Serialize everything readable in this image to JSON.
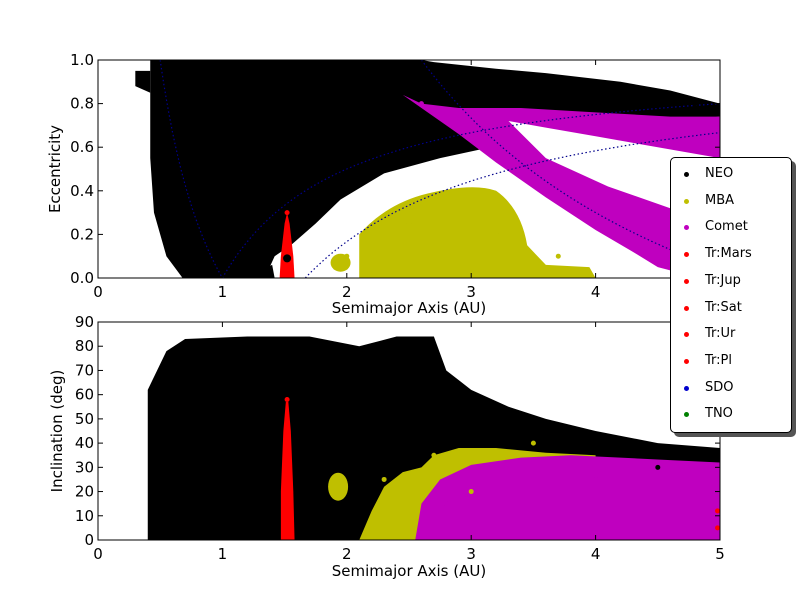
{
  "chart_data": [
    {
      "type": "scatter",
      "panel": "top",
      "xlabel": "Semimajor Axis (AU)",
      "ylabel": "Eccentricity",
      "xlim": [
        0,
        5
      ],
      "ylim": [
        0,
        1
      ],
      "xticks": [
        "0",
        "1",
        "2",
        "3",
        "4"
      ],
      "yticks": [
        "0.0",
        "0.2",
        "0.4",
        "0.6",
        "0.8",
        "1.0"
      ],
      "grid": false,
      "series": [
        {
          "name": "NEO",
          "color": "#000000",
          "region_approx": "a 0.5-1.7 all e; a 1.7-5 above perihelion curve",
          "approx_points": [
            [
              0.6,
              0.5
            ],
            [
              1.0,
              0.3
            ],
            [
              1.3,
              0.2
            ],
            [
              2.5,
              0.85
            ],
            [
              3.5,
              0.85
            ],
            [
              4.8,
              0.8
            ]
          ]
        },
        {
          "name": "MBA",
          "color": "#bfbf00",
          "region_approx": "a 1.8-3.9, e 0-0.45",
          "approx_points": [
            [
              2.0,
              0.1
            ],
            [
              2.5,
              0.25
            ],
            [
              2.8,
              0.35
            ],
            [
              3.2,
              0.2
            ],
            [
              3.7,
              0.1
            ]
          ]
        },
        {
          "name": "Comet",
          "color": "#bf00bf",
          "region_approx": "a 2.5-5, e 0.05-0.85",
          "approx_points": [
            [
              2.6,
              0.8
            ],
            [
              3.2,
              0.6
            ],
            [
              4.0,
              0.4
            ],
            [
              4.6,
              0.15
            ],
            [
              5.0,
              0.7
            ]
          ]
        },
        {
          "name": "Tr:Mars",
          "color": "#ff0000",
          "approx_points": [
            [
              1.52,
              0.05
            ],
            [
              1.52,
              0.2
            ],
            [
              1.52,
              0.3
            ]
          ]
        },
        {
          "name": "Tr:Jup",
          "color": "#ff0000",
          "approx_points": []
        },
        {
          "name": "Tr:Sat",
          "color": "#ff0000",
          "approx_points": []
        },
        {
          "name": "Tr:Ur",
          "color": "#ff0000",
          "approx_points": []
        },
        {
          "name": "Tr:Pl",
          "color": "#ff0000",
          "approx_points": []
        },
        {
          "name": "SDO",
          "color": "#0000ff",
          "approx_points": []
        },
        {
          "name": "TNO",
          "color": "#008000",
          "approx_points": []
        }
      ],
      "markers": [
        {
          "a": 1.52,
          "e": 0.09,
          "color": "#000000"
        }
      ],
      "reference_curves": [
        {
          "kind": "perihelion",
          "q": 1.0,
          "color": "#00008b",
          "style": "dotted"
        },
        {
          "kind": "aphelion",
          "Q": 1.0,
          "color": "#00008b",
          "style": "dotted"
        },
        {
          "kind": "perihelion",
          "q": 1.666,
          "color": "#00008b",
          "style": "dotted"
        },
        {
          "kind": "aphelion",
          "Q": 5.2,
          "color": "#00008b",
          "style": "dotted"
        },
        {
          "kind": "perihelion",
          "q": 5.2,
          "color": "#00008b",
          "style": "dotted"
        }
      ]
    },
    {
      "type": "scatter",
      "panel": "bottom",
      "xlabel": "Semimajor Axis (AU)",
      "ylabel": "Inclination (deg)",
      "xlim": [
        0,
        5
      ],
      "ylim": [
        0,
        90
      ],
      "xticks": [
        "0",
        "1",
        "2",
        "3",
        "4",
        "5"
      ],
      "yticks": [
        "0",
        "10",
        "20",
        "30",
        "40",
        "50",
        "60",
        "70",
        "80",
        "90"
      ],
      "grid": false,
      "series": [
        {
          "name": "NEO",
          "color": "#000000",
          "region_approx": "a 0.4-2.6 i 0-85; a 2.6-5 i up to 60 sparse",
          "approx_points": [
            [
              0.5,
              20
            ],
            [
              1.0,
              40
            ],
            [
              1.5,
              70
            ],
            [
              2.3,
              60
            ],
            [
              3.5,
              45
            ],
            [
              4.5,
              30
            ]
          ]
        },
        {
          "name": "MBA",
          "color": "#bfbf00",
          "region_approx": "a 1.8-4 i 0-50",
          "approx_points": [
            [
              1.95,
              22
            ],
            [
              2.3,
              25
            ],
            [
              2.7,
              35
            ],
            [
              3.0,
              20
            ],
            [
              3.5,
              40
            ]
          ]
        },
        {
          "name": "Comet",
          "color": "#bf00bf",
          "region_approx": "a 2.6-5 i 0-38",
          "approx_points": [
            [
              2.8,
              15
            ],
            [
              3.2,
              30
            ],
            [
              4.0,
              25
            ],
            [
              4.8,
              20
            ]
          ]
        },
        {
          "name": "Tr:Mars",
          "color": "#ff0000",
          "approx_points": [
            [
              1.52,
              5
            ],
            [
              1.52,
              25
            ],
            [
              1.52,
              45
            ],
            [
              1.52,
              58
            ]
          ]
        },
        {
          "name": "Tr:Jup",
          "color": "#ff0000",
          "approx_points": [
            [
              4.98,
              5
            ],
            [
              4.98,
              12
            ]
          ]
        },
        {
          "name": "Tr:Sat",
          "color": "#ff0000",
          "approx_points": []
        },
        {
          "name": "Tr:Ur",
          "color": "#ff0000",
          "approx_points": []
        },
        {
          "name": "Tr:Pl",
          "color": "#ff0000",
          "approx_points": []
        },
        {
          "name": "SDO",
          "color": "#0000ff",
          "approx_points": []
        },
        {
          "name": "TNO",
          "color": "#008000",
          "approx_points": []
        }
      ]
    }
  ],
  "legend": {
    "placement": "right",
    "items": [
      {
        "label": "NEO",
        "color": "#000000"
      },
      {
        "label": "MBA",
        "color": "#bfbf00"
      },
      {
        "label": "Comet",
        "color": "#bf00bf"
      },
      {
        "label": "Tr:Mars",
        "color": "#ff0000"
      },
      {
        "label": "Tr:Jup",
        "color": "#ff0000"
      },
      {
        "label": "Tr:Sat",
        "color": "#ff0000"
      },
      {
        "label": "Tr:Ur",
        "color": "#ff0000"
      },
      {
        "label": "Tr:Pl",
        "color": "#ff0000"
      },
      {
        "label": "SDO",
        "color": "#0000cc"
      },
      {
        "label": "TNO",
        "color": "#008000"
      }
    ]
  }
}
